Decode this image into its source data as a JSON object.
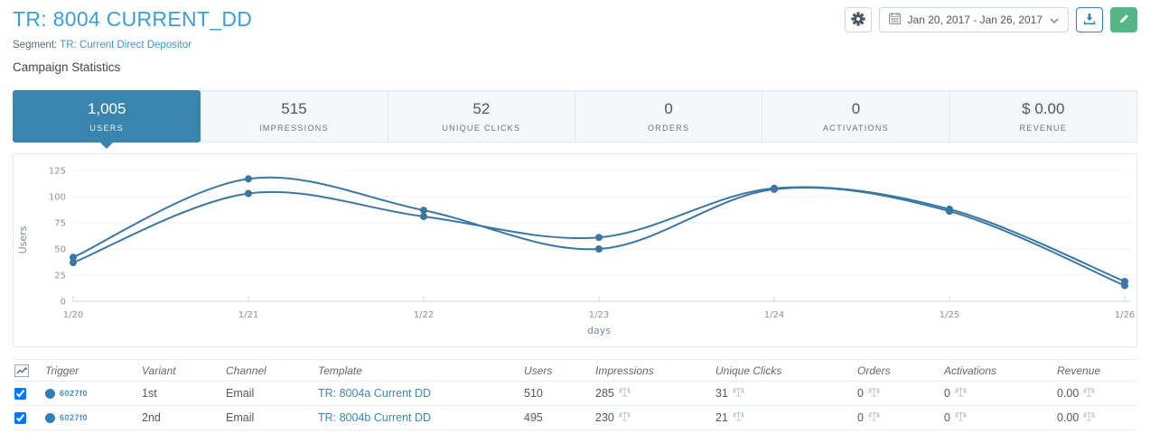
{
  "header": {
    "title": "TR: 8004 CURRENT_DD",
    "segment_label": "Segment:",
    "segment_link": "TR: Current Direct Depositor",
    "section_title": "Campaign Statistics",
    "date_range": "Jan 20, 2017 - Jan 26, 2017"
  },
  "icons": {
    "gear": "gear-icon",
    "calendar": "calendar-icon",
    "chevron": "chevron-down-icon",
    "download": "download-icon",
    "pencil": "pencil-icon",
    "line_chart": "line-chart-icon",
    "scale": "scale-icon"
  },
  "colors": {
    "title_blue": "#3b9ed6",
    "active_tab": "#3a85ad",
    "chart_line": "#3a76a2",
    "edit_green": "#55b587",
    "download_blue": "#2e86b8",
    "link_blue": "#3b87b8"
  },
  "tabs": [
    {
      "value": "1,005",
      "label": "USERS",
      "active": true
    },
    {
      "value": "515",
      "label": "IMPRESSIONS",
      "active": false
    },
    {
      "value": "52",
      "label": "UNIQUE CLICKS",
      "active": false
    },
    {
      "value": "0",
      "label": "ORDERS",
      "active": false
    },
    {
      "value": "0",
      "label": "ACTIVATIONS",
      "active": false
    },
    {
      "value": "$ 0.00",
      "label": "REVENUE",
      "active": false
    }
  ],
  "chart_data": {
    "type": "line",
    "title": "",
    "xlabel": "days",
    "ylabel": "Users",
    "categories": [
      "1/20",
      "1/21",
      "1/22",
      "1/23",
      "1/24",
      "1/25",
      "1/26"
    ],
    "series": [
      {
        "name": "1st",
        "values": [
          42,
          117,
          87,
          50,
          107,
          86,
          15
        ]
      },
      {
        "name": "2nd",
        "values": [
          37,
          103,
          81,
          61,
          108,
          88,
          19
        ]
      }
    ],
    "ylim": [
      0,
      125
    ],
    "yticks": [
      0,
      25,
      50,
      75,
      100,
      125
    ],
    "grid": true,
    "legend": false,
    "line_color": "#3a76a2",
    "smooth": true
  },
  "table": {
    "headers": [
      "Trigger",
      "Variant",
      "Channel",
      "Template",
      "Users",
      "Impressions",
      "Unique Clicks",
      "Orders",
      "Activations",
      "Revenue"
    ],
    "rows": [
      {
        "selected": true,
        "trigger_id": "6027f0",
        "variant": "1st",
        "channel": "Email",
        "template": "TR: 8004a Current DD",
        "users": "510",
        "impressions": "285",
        "unique_clicks": "31",
        "orders": "0",
        "activations": "0",
        "revenue": "0.00"
      },
      {
        "selected": true,
        "trigger_id": "6027f0",
        "variant": "2nd",
        "channel": "Email",
        "template": "TR: 8004b Current DD",
        "users": "495",
        "impressions": "230",
        "unique_clicks": "21",
        "orders": "0",
        "activations": "0",
        "revenue": "0.00"
      }
    ]
  }
}
